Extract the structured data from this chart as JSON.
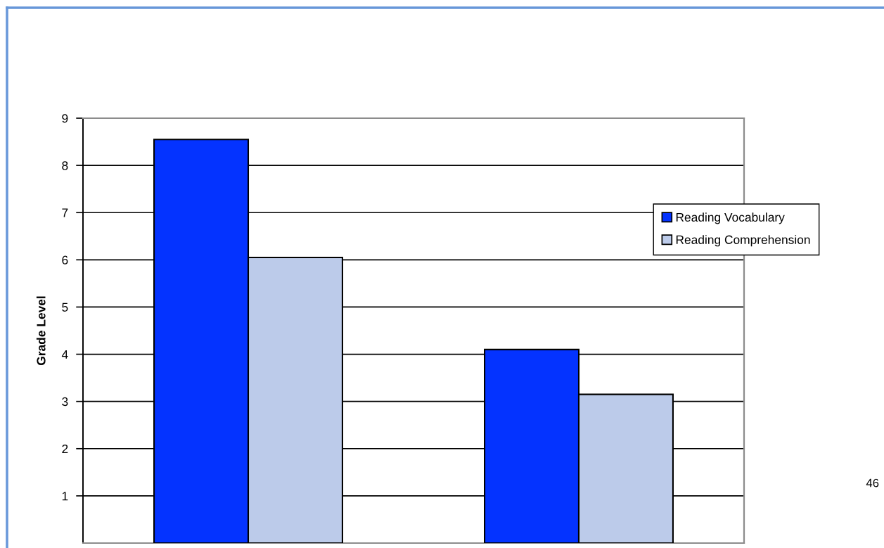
{
  "chart_data": {
    "type": "bar",
    "ylabel": "Grade Level",
    "categories": [
      null,
      null
    ],
    "series": [
      {
        "name": "Reading Vocabulary",
        "color": "#0433ff",
        "values": [
          8.55,
          4.1
        ]
      },
      {
        "name": "Reading Comprehension",
        "color": "#bccbea",
        "values": [
          6.05,
          3.15
        ]
      }
    ],
    "ylim": [
      0,
      9
    ],
    "yticks": [
      1,
      2,
      3,
      4,
      5,
      6,
      7,
      8,
      9
    ],
    "grid": "y",
    "legend": "right",
    "tick_labels": "y",
    "annotations": [
      "46"
    ]
  }
}
